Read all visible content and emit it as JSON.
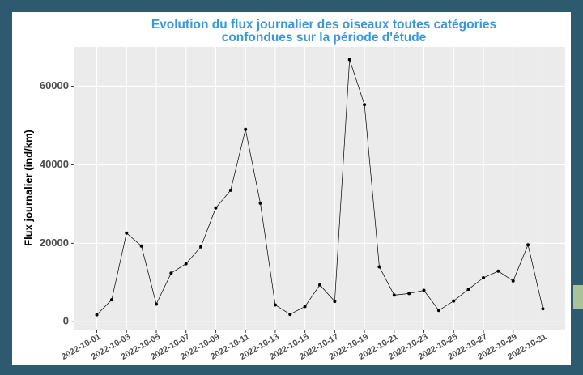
{
  "chart_data": {
    "type": "line",
    "title": [
      "Evolution du flux journalier des oiseaux toutes catégories",
      "confondues sur la période d'étude"
    ],
    "y_label": "Flux journalier (ind/km)",
    "x": [
      "2022-10-01",
      "2022-10-02",
      "2022-10-03",
      "2022-10-04",
      "2022-10-05",
      "2022-10-06",
      "2022-10-07",
      "2022-10-08",
      "2022-10-09",
      "2022-10-10",
      "2022-10-11",
      "2022-10-12",
      "2022-10-13",
      "2022-10-14",
      "2022-10-15",
      "2022-10-16",
      "2022-10-17",
      "2022-10-18",
      "2022-10-19",
      "2022-10-20",
      "2022-10-21",
      "2022-10-22",
      "2022-10-23",
      "2022-10-24",
      "2022-10-25",
      "2022-10-26",
      "2022-10-27",
      "2022-10-28",
      "2022-10-29",
      "2022-10-30",
      "2022-10-31"
    ],
    "values": [
      1800,
      5600,
      22600,
      19300,
      4500,
      12400,
      14800,
      19100,
      29000,
      33500,
      49000,
      30200,
      4300,
      1900,
      3900,
      9400,
      5200,
      66800,
      55300,
      14000,
      6800,
      7200,
      8000,
      2900,
      5300,
      8300,
      11200,
      12900,
      10400,
      19600,
      3300
    ],
    "color": "#000000",
    "xticks": [
      "2022-10-01",
      "2022-10-03",
      "2022-10-05",
      "2022-10-07",
      "2022-10-09",
      "2022-10-11",
      "2022-10-13",
      "2022-10-15",
      "2022-10-17",
      "2022-10-19",
      "2022-10-21",
      "2022-10-23",
      "2022-10-25",
      "2022-10-27",
      "2022-10-29",
      "2022-10-31"
    ],
    "ylim": [
      -2000,
      70000
    ],
    "yticks": [
      0,
      20000,
      40000,
      60000
    ],
    "grid": true
  }
}
